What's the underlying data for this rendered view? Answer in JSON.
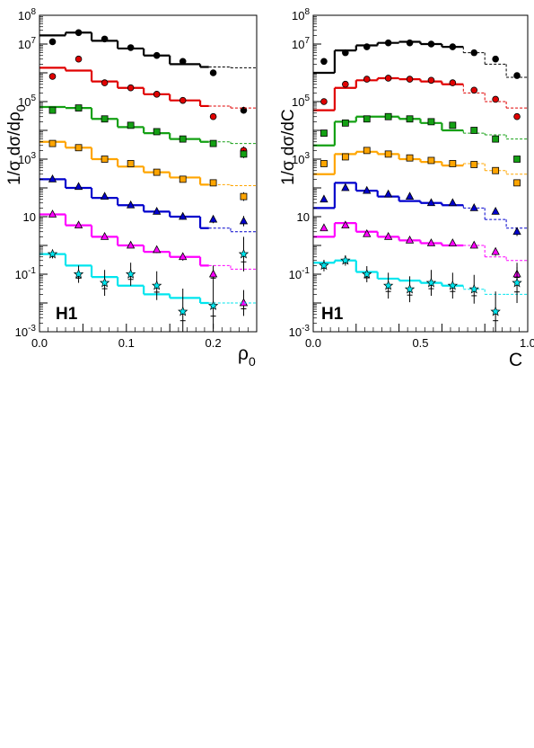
{
  "chart_data": [
    {
      "type": "scatter",
      "panel_label": "H1",
      "ylabel": "1/σ dσ/dρ",
      "ylabel_sub": "0",
      "xlabel": "ρ",
      "xlabel_sub": "0",
      "xlim": [
        0,
        0.25
      ],
      "ylim": [
        0.001,
        100000000
      ],
      "yscale": "log",
      "x_ticks": [
        "0.0",
        "0.1",
        "0.2"
      ],
      "x_tick_values": [
        0,
        0.1,
        0.2
      ],
      "y_ticks": [
        {
          "v": 0.001,
          "base": "10",
          "exp": "-3"
        },
        {
          "v": 0.1,
          "base": "10",
          "exp": "-1"
        },
        {
          "v": 10,
          "base": "10",
          "exp": ""
        },
        {
          "v": 1000,
          "base": "10",
          "exp": "3"
        },
        {
          "v": 100000,
          "base": "10",
          "exp": "5"
        },
        {
          "v": 10000000,
          "base": "10",
          "exp": "7"
        },
        {
          "v": 100000000,
          "base": "10",
          "exp": "8"
        }
      ],
      "series": [
        {
          "color": "#000000",
          "marker": "circle",
          "x": [
            0.015,
            0.045,
            0.075,
            0.105,
            0.135,
            0.165,
            0.2,
            0.235
          ],
          "y": [
            12000000,
            25000000,
            15000000,
            7500000,
            4000000,
            2500000,
            1000000,
            50000
          ],
          "yerr": [
            0.04,
            0.04,
            0.04,
            0.04,
            0.05,
            0.06,
            0.08,
            0.12
          ],
          "bins": [
            0,
            0.03,
            0.06,
            0.09,
            0.12,
            0.15,
            0.185,
            0.22,
            0.25
          ],
          "model": [
            20000000,
            25000000,
            13000000,
            7000000,
            4000000,
            2000000,
            1600000,
            1500000
          ]
        },
        {
          "color": "#e00000",
          "marker": "circle",
          "x": [
            0.015,
            0.045,
            0.075,
            0.105,
            0.135,
            0.165,
            0.2,
            0.235
          ],
          "y": [
            750000,
            3000000,
            450000,
            300000,
            180000,
            110000,
            30000,
            2000
          ],
          "yerr": [
            0.04,
            0.04,
            0.04,
            0.04,
            0.05,
            0.06,
            0.08,
            0.14
          ],
          "bins": [
            0,
            0.03,
            0.06,
            0.09,
            0.12,
            0.15,
            0.185,
            0.22,
            0.25
          ],
          "model": [
            1500000,
            1200000,
            500000,
            300000,
            180000,
            110000,
            70000,
            60000
          ]
        },
        {
          "color": "#14a014",
          "marker": "square",
          "x": [
            0.015,
            0.045,
            0.075,
            0.105,
            0.135,
            0.165,
            0.2,
            0.235
          ],
          "y": [
            50000,
            60000,
            25000,
            15000,
            9000,
            5000,
            3500,
            1500
          ],
          "yerr": [
            0.04,
            0.04,
            0.04,
            0.04,
            0.05,
            0.06,
            0.08,
            0.14
          ],
          "bins": [
            0,
            0.03,
            0.06,
            0.09,
            0.12,
            0.15,
            0.185,
            0.22,
            0.25
          ],
          "model": [
            65000,
            60000,
            25000,
            13000,
            8000,
            5000,
            4000,
            3500
          ]
        },
        {
          "color": "#ffa500",
          "marker": "square",
          "x": [
            0.015,
            0.045,
            0.075,
            0.105,
            0.135,
            0.165,
            0.2,
            0.235
          ],
          "y": [
            3500,
            2500,
            1000,
            700,
            350,
            200,
            150,
            50
          ],
          "yerr": [
            0.04,
            0.04,
            0.04,
            0.05,
            0.06,
            0.07,
            0.09,
            0.15
          ],
          "bins": [
            0,
            0.03,
            0.06,
            0.09,
            0.12,
            0.15,
            0.185,
            0.22,
            0.25
          ],
          "model": [
            4000,
            2500,
            1000,
            550,
            350,
            230,
            130,
            120
          ]
        },
        {
          "color": "#0000cc",
          "marker": "triangle",
          "x": [
            0.015,
            0.045,
            0.075,
            0.105,
            0.135,
            0.165,
            0.2,
            0.235
          ],
          "y": [
            200,
            110,
            50,
            25,
            15,
            10,
            8,
            7
          ],
          "yerr": [
            0.05,
            0.05,
            0.06,
            0.07,
            0.08,
            0.1,
            0.13,
            0.18
          ],
          "bins": [
            0,
            0.03,
            0.06,
            0.09,
            0.12,
            0.15,
            0.185,
            0.22,
            0.25
          ],
          "model": [
            200,
            100,
            45,
            25,
            15,
            10,
            4,
            3
          ]
        },
        {
          "color": "#ff00ff",
          "marker": "triangle",
          "x": [
            0.015,
            0.045,
            0.075,
            0.105,
            0.135,
            0.165,
            0.2,
            0.235
          ],
          "y": [
            12,
            5,
            2,
            1,
            0.7,
            0.4,
            0.1,
            0.01
          ],
          "yerr": [
            0.06,
            0.07,
            0.08,
            0.09,
            0.11,
            0.13,
            0.3,
            0.45
          ],
          "bins": [
            0,
            0.03,
            0.06,
            0.09,
            0.12,
            0.15,
            0.185,
            0.22,
            0.25
          ],
          "model": [
            12,
            5,
            2,
            1,
            0.6,
            0.4,
            0.2,
            0.15
          ]
        },
        {
          "color": "#00e5ee",
          "marker": "star",
          "x": [
            0.015,
            0.045,
            0.075,
            0.105,
            0.135,
            0.165,
            0.2,
            0.235
          ],
          "y": [
            0.5,
            0.1,
            0.05,
            0.1,
            0.04,
            0.005,
            0.008,
            0.5
          ],
          "yerr": [
            0.15,
            0.3,
            0.45,
            0.4,
            0.5,
            0.8,
            0.8,
            0.6
          ],
          "bins": [
            0,
            0.03,
            0.06,
            0.09,
            0.12,
            0.15,
            0.185,
            0.22,
            0.25
          ],
          "model": [
            0.5,
            0.2,
            0.08,
            0.04,
            0.02,
            0.015,
            0.01,
            0.01
          ]
        }
      ]
    },
    {
      "type": "scatter",
      "panel_label": "H1",
      "ylabel": "1/σ dσ/dC",
      "ylabel_sub": "",
      "xlabel": "C",
      "xlabel_sub": "",
      "xlim": [
        0,
        1.0
      ],
      "ylim": [
        0.001,
        100000000
      ],
      "yscale": "log",
      "x_ticks": [
        "0.0",
        "0.5",
        "1.0"
      ],
      "x_tick_values": [
        0,
        0.5,
        1.0
      ],
      "y_ticks": [
        {
          "v": 0.001,
          "base": "10",
          "exp": "-3"
        },
        {
          "v": 0.1,
          "base": "10",
          "exp": "-1"
        },
        {
          "v": 10,
          "base": "10",
          "exp": ""
        },
        {
          "v": 1000,
          "base": "10",
          "exp": "3"
        },
        {
          "v": 100000,
          "base": "10",
          "exp": "5"
        },
        {
          "v": 10000000,
          "base": "10",
          "exp": "7"
        },
        {
          "v": 100000000,
          "base": "10",
          "exp": "8"
        }
      ],
      "series": [
        {
          "color": "#000000",
          "marker": "circle",
          "x": [
            0.05,
            0.15,
            0.25,
            0.35,
            0.45,
            0.55,
            0.65,
            0.75,
            0.85,
            0.95
          ],
          "y": [
            2500000,
            5000000,
            8000000,
            11000000,
            11000000,
            10000000,
            8000000,
            5000000,
            3000000,
            800000
          ],
          "yerr": [
            0.04,
            0.04,
            0.04,
            0.04,
            0.04,
            0.04,
            0.04,
            0.05,
            0.06,
            0.08
          ],
          "bins": [
            0,
            0.1,
            0.2,
            0.3,
            0.4,
            0.5,
            0.6,
            0.7,
            0.8,
            0.9,
            1.0
          ],
          "model": [
            1000000,
            6000000,
            9000000,
            11000000,
            12000000,
            10000000,
            8000000,
            5000000,
            2000000,
            700000
          ]
        },
        {
          "color": "#e00000",
          "marker": "circle",
          "x": [
            0.05,
            0.15,
            0.25,
            0.35,
            0.45,
            0.55,
            0.65,
            0.75,
            0.85,
            0.95
          ],
          "y": [
            100000,
            400000,
            600000,
            650000,
            600000,
            550000,
            450000,
            250000,
            120000,
            30000
          ],
          "yerr": [
            0.04,
            0.04,
            0.04,
            0.04,
            0.04,
            0.04,
            0.04,
            0.05,
            0.06,
            0.08
          ],
          "bins": [
            0,
            0.1,
            0.2,
            0.3,
            0.4,
            0.5,
            0.6,
            0.7,
            0.8,
            0.9,
            1.0
          ],
          "model": [
            50000,
            300000,
            550000,
            650000,
            600000,
            500000,
            400000,
            200000,
            100000,
            60000
          ]
        },
        {
          "color": "#14a014",
          "marker": "square",
          "x": [
            0.05,
            0.15,
            0.25,
            0.35,
            0.45,
            0.55,
            0.65,
            0.75,
            0.85,
            0.95
          ],
          "y": [
            8000,
            18000,
            25000,
            30000,
            25000,
            20000,
            15000,
            10000,
            5000,
            1000
          ],
          "yerr": [
            0.04,
            0.04,
            0.04,
            0.04,
            0.04,
            0.04,
            0.05,
            0.05,
            0.07,
            0.09
          ],
          "bins": [
            0,
            0.1,
            0.2,
            0.3,
            0.4,
            0.5,
            0.6,
            0.7,
            0.8,
            0.9,
            1.0
          ],
          "model": [
            3000,
            20000,
            30000,
            30000,
            25000,
            18000,
            10000,
            8000,
            7000,
            5000
          ]
        },
        {
          "color": "#ffa500",
          "marker": "square",
          "x": [
            0.05,
            0.15,
            0.25,
            0.35,
            0.45,
            0.55,
            0.65,
            0.75,
            0.85,
            0.95
          ],
          "y": [
            700,
            1200,
            2000,
            1500,
            1100,
            900,
            700,
            650,
            400,
            150
          ],
          "yerr": [
            0.04,
            0.04,
            0.04,
            0.04,
            0.04,
            0.05,
            0.05,
            0.06,
            0.08,
            0.1
          ],
          "bins": [
            0,
            0.1,
            0.2,
            0.3,
            0.4,
            0.5,
            0.6,
            0.7,
            0.8,
            0.9,
            1.0
          ],
          "model": [
            300,
            1500,
            1800,
            1500,
            1000,
            800,
            600,
            700,
            400,
            300
          ]
        },
        {
          "color": "#0000cc",
          "marker": "triangle",
          "x": [
            0.05,
            0.15,
            0.25,
            0.35,
            0.45,
            0.55,
            0.65,
            0.75,
            0.85,
            0.95
          ],
          "y": [
            40,
            100,
            80,
            60,
            50,
            30,
            30,
            20,
            15,
            3
          ],
          "yerr": [
            0.05,
            0.05,
            0.05,
            0.05,
            0.06,
            0.06,
            0.07,
            0.08,
            0.1,
            0.15
          ],
          "bins": [
            0,
            0.1,
            0.2,
            0.3,
            0.4,
            0.5,
            0.6,
            0.7,
            0.8,
            0.9,
            1.0
          ],
          "model": [
            20,
            150,
            80,
            50,
            35,
            30,
            25,
            20,
            8,
            4
          ]
        },
        {
          "color": "#ff00ff",
          "marker": "triangle",
          "x": [
            0.05,
            0.15,
            0.25,
            0.35,
            0.45,
            0.55,
            0.65,
            0.75,
            0.85,
            0.95
          ],
          "y": [
            4,
            5,
            2.5,
            2,
            1.5,
            1.2,
            1.2,
            1,
            0.6,
            0.1
          ],
          "yerr": [
            0.06,
            0.06,
            0.06,
            0.07,
            0.07,
            0.08,
            0.09,
            0.1,
            0.14,
            0.25
          ],
          "bins": [
            0,
            0.1,
            0.2,
            0.3,
            0.4,
            0.5,
            0.6,
            0.7,
            0.8,
            0.9,
            1.0
          ],
          "model": [
            2,
            6,
            3,
            2,
            1.5,
            1.2,
            1,
            1,
            0.4,
            0.3
          ]
        },
        {
          "color": "#00e5ee",
          "marker": "star",
          "x": [
            0.05,
            0.15,
            0.25,
            0.35,
            0.45,
            0.55,
            0.65,
            0.75,
            0.85,
            0.95
          ],
          "y": [
            0.2,
            0.3,
            0.1,
            0.04,
            0.03,
            0.05,
            0.04,
            0.03,
            0.005,
            0.05
          ],
          "yerr": [
            0.2,
            0.18,
            0.28,
            0.45,
            0.45,
            0.45,
            0.45,
            0.5,
            0.7,
            0.7
          ],
          "bins": [
            0,
            0.1,
            0.2,
            0.3,
            0.4,
            0.5,
            0.6,
            0.7,
            0.8,
            0.9,
            1.0
          ],
          "model": [
            0.25,
            0.3,
            0.12,
            0.07,
            0.06,
            0.05,
            0.04,
            0.03,
            0.02,
            0.02
          ]
        }
      ]
    }
  ]
}
